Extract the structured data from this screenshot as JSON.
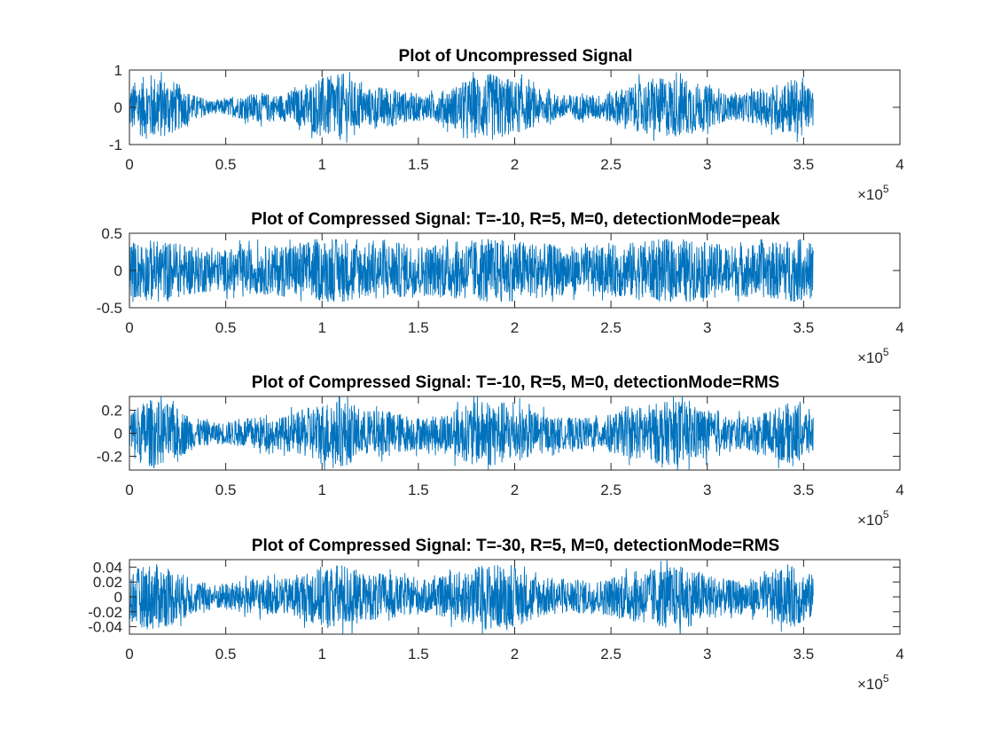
{
  "chart_data": [
    {
      "type": "line",
      "title": "Plot of Uncompressed Signal",
      "xlabel": "",
      "ylabel": "",
      "xlim": [
        0,
        4
      ],
      "ylim": [
        -1,
        1
      ],
      "x_multiplier": {
        "base": "×10",
        "exponent": "5"
      },
      "x_ticks": [
        "0",
        "0.5",
        "1",
        "1.5",
        "2",
        "2.5",
        "3",
        "3.5",
        "4"
      ],
      "y_ticks": [
        {
          "value": 1,
          "label": "1"
        },
        {
          "value": 0,
          "label": "0"
        },
        {
          "value": -1,
          "label": "-1"
        }
      ],
      "signal": {
        "x_end": 3.55,
        "envelope": [
          0.55,
          0.8,
          0.65,
          0.3,
          0.15,
          0.25,
          0.35,
          0.3,
          0.45,
          0.7,
          0.8,
          0.45,
          0.5,
          0.35,
          0.3,
          0.45,
          0.7,
          0.8,
          0.65,
          0.45,
          0.3,
          0.3,
          0.3,
          0.45,
          0.6,
          0.7,
          0.7,
          0.5,
          0.3,
          0.35,
          0.5,
          0.7,
          0.45
        ],
        "clip": 0.95,
        "color": "#0072BD"
      }
    },
    {
      "type": "line",
      "title": "Plot of Compressed Signal: T=-10, R=5, M=0, detectionMode=peak",
      "xlabel": "",
      "ylabel": "",
      "xlim": [
        0,
        4
      ],
      "ylim": [
        -0.5,
        0.5
      ],
      "x_multiplier": {
        "base": "×10",
        "exponent": "5"
      },
      "x_ticks": [
        "0",
        "0.5",
        "1",
        "1.5",
        "2",
        "2.5",
        "3",
        "3.5",
        "4"
      ],
      "y_ticks": [
        {
          "value": 0.5,
          "label": "0.5"
        },
        {
          "value": 0,
          "label": "0"
        },
        {
          "value": -0.5,
          "label": "-0.5"
        }
      ],
      "signal": {
        "x_end": 3.55,
        "envelope": [
          0.33,
          0.36,
          0.34,
          0.28,
          0.24,
          0.26,
          0.28,
          0.3,
          0.34,
          0.36,
          0.37,
          0.33,
          0.34,
          0.32,
          0.3,
          0.33,
          0.36,
          0.37,
          0.36,
          0.33,
          0.3,
          0.28,
          0.27,
          0.32,
          0.35,
          0.36,
          0.36,
          0.33,
          0.3,
          0.31,
          0.33,
          0.37,
          0.33
        ],
        "clip": 0.42,
        "color": "#0072BD"
      }
    },
    {
      "type": "line",
      "title": "Plot of Compressed Signal: T=-10, R=5, M=0, detectionMode=RMS",
      "xlabel": "",
      "ylabel": "",
      "xlim": [
        0,
        4
      ],
      "ylim": [
        -0.32,
        0.32
      ],
      "x_multiplier": {
        "base": "×10",
        "exponent": "5"
      },
      "x_ticks": [
        "0",
        "0.5",
        "1",
        "1.5",
        "2",
        "2.5",
        "3",
        "3.5",
        "4"
      ],
      "y_ticks": [
        {
          "value": 0.2,
          "label": "0.2"
        },
        {
          "value": 0,
          "label": "0"
        },
        {
          "value": -0.2,
          "label": "-0.2"
        }
      ],
      "signal": {
        "x_end": 3.55,
        "envelope": [
          0.2,
          0.26,
          0.22,
          0.12,
          0.08,
          0.1,
          0.13,
          0.12,
          0.17,
          0.24,
          0.26,
          0.17,
          0.18,
          0.14,
          0.12,
          0.17,
          0.23,
          0.26,
          0.22,
          0.17,
          0.12,
          0.12,
          0.12,
          0.17,
          0.21,
          0.24,
          0.24,
          0.18,
          0.12,
          0.13,
          0.18,
          0.24,
          0.17
        ],
        "clip": 0.32,
        "color": "#0072BD"
      }
    },
    {
      "type": "line",
      "title": "Plot of Compressed Signal: T=-30, R=5, M=0, detectionMode=RMS",
      "xlabel": "",
      "ylabel": "",
      "xlim": [
        0,
        4
      ],
      "ylim": [
        -0.05,
        0.05
      ],
      "x_multiplier": {
        "base": "×10",
        "exponent": "5"
      },
      "x_ticks": [
        "0",
        "0.5",
        "1",
        "1.5",
        "2",
        "2.5",
        "3",
        "3.5",
        "4"
      ],
      "y_ticks": [
        {
          "value": 0.04,
          "label": "0.04"
        },
        {
          "value": 0.02,
          "label": "0.02"
        },
        {
          "value": 0,
          "label": "0"
        },
        {
          "value": -0.02,
          "label": "-0.02"
        },
        {
          "value": -0.04,
          "label": "-0.04"
        }
      ],
      "signal": {
        "x_end": 3.55,
        "envelope": [
          0.03,
          0.04,
          0.034,
          0.02,
          0.015,
          0.018,
          0.022,
          0.02,
          0.026,
          0.036,
          0.04,
          0.027,
          0.028,
          0.022,
          0.02,
          0.026,
          0.035,
          0.04,
          0.034,
          0.026,
          0.02,
          0.02,
          0.02,
          0.026,
          0.032,
          0.036,
          0.036,
          0.028,
          0.02,
          0.021,
          0.028,
          0.036,
          0.026
        ],
        "clip": 0.05,
        "color": "#0072BD"
      }
    }
  ]
}
